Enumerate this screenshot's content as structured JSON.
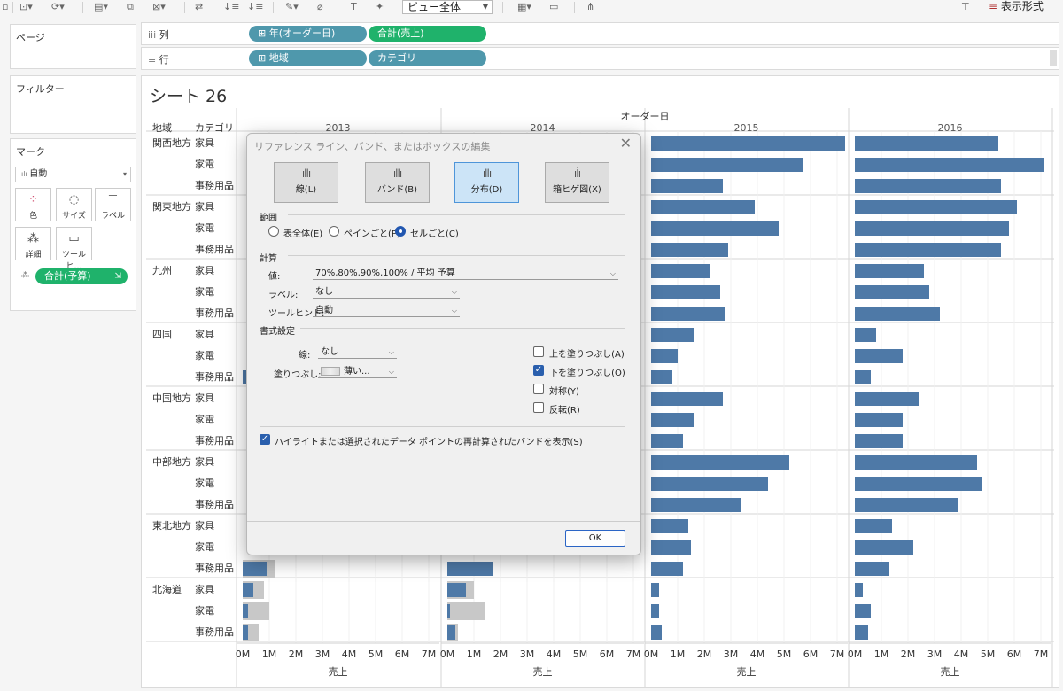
{
  "toolbar": {
    "view_select": "ビュー全体",
    "show_format": "表示形式"
  },
  "cards": {
    "pages": "ページ",
    "filters": "フィルター",
    "marks": "マーク",
    "marks_type": "自動",
    "mark_buttons": [
      {
        "label": "色",
        "icon": "color-icon"
      },
      {
        "label": "サイズ",
        "icon": "size-icon"
      },
      {
        "label": "ラベル",
        "icon": "label-icon"
      },
      {
        "label": "詳細",
        "icon": "detail-icon"
      },
      {
        "label": "ツールヒ…",
        "icon": "tooltip-icon"
      }
    ],
    "marks_pill": "合計(予算)"
  },
  "shelves": {
    "columns_title": "列",
    "rows_title": "行",
    "columns_pills": [
      "年(オーダー日)",
      "合計(売上)"
    ],
    "rows_pills": [
      "地域",
      "カテゴリ"
    ]
  },
  "sheet": {
    "title": "シート 26",
    "header_region": "地域",
    "header_category": "カテゴリ",
    "column_header": "オーダー日",
    "axis_title": "売上"
  },
  "chart_data": {
    "type": "bar",
    "title": "シート 26",
    "column_header": "オーダー日",
    "years": [
      "2013",
      "2014",
      "2015",
      "2016"
    ],
    "regions": [
      "関西地方",
      "関東地方",
      "九州",
      "四国",
      "中国地方",
      "中部地方",
      "東北地方",
      "北海道"
    ],
    "categories": [
      "家具",
      "家電",
      "事務用品"
    ],
    "xlabel": "売上",
    "xlim": [
      0,
      7.5
    ],
    "ticks": [
      "0M",
      "1M",
      "2M",
      "3M",
      "4M",
      "5M",
      "6M",
      "7M"
    ],
    "unit": "M",
    "bar_color": "#4e79a7",
    "band_color": "#c8c8c8",
    "series": [
      {
        "year": "2015",
        "values": [
          [
            7.3,
            5.7,
            2.7
          ],
          [
            3.9,
            4.8,
            2.9
          ],
          [
            2.2,
            2.6,
            2.8
          ],
          [
            1.6,
            1.0,
            0.8
          ],
          [
            2.7,
            1.6,
            1.2
          ],
          [
            5.2,
            4.4,
            3.4
          ],
          [
            1.4,
            1.5,
            1.2
          ],
          [
            0.3,
            0.3,
            0.4
          ]
        ]
      },
      {
        "year": "2016",
        "values": [
          [
            5.4,
            7.1,
            5.5
          ],
          [
            6.1,
            5.8,
            5.5
          ],
          [
            2.6,
            2.8,
            3.2
          ],
          [
            0.8,
            1.8,
            0.6
          ],
          [
            2.4,
            1.8,
            1.8
          ],
          [
            4.6,
            4.8,
            3.9
          ],
          [
            1.4,
            2.2,
            1.3
          ],
          [
            0.3,
            0.6,
            0.5
          ]
        ]
      },
      {
        "year": "2013",
        "values": [
          [
            null,
            null,
            null
          ],
          [
            null,
            null,
            null
          ],
          [
            null,
            null,
            null
          ],
          [
            null,
            null,
            0.2
          ],
          [
            null,
            null,
            null
          ],
          [
            null,
            null,
            null
          ],
          [
            null,
            null,
            0.9
          ],
          [
            0.4,
            0.2,
            0.2
          ]
        ]
      },
      {
        "year": "2014",
        "values": [
          [
            null,
            null,
            null
          ],
          [
            null,
            null,
            null
          ],
          [
            null,
            null,
            null
          ],
          [
            null,
            null,
            null
          ],
          [
            null,
            null,
            null
          ],
          [
            null,
            null,
            null
          ],
          [
            null,
            null,
            1.7
          ],
          [
            0.7,
            0.1,
            0.3
          ]
        ]
      }
    ],
    "bands": {
      "2013": [
        [
          null,
          null,
          null
        ],
        [
          null,
          null,
          null
        ],
        [
          null,
          null,
          null
        ],
        [
          null,
          null,
          null
        ],
        [
          null,
          null,
          null
        ],
        [
          null,
          null,
          null
        ],
        [
          null,
          null,
          1.2
        ],
        [
          0.8,
          1.0,
          0.6
        ]
      ],
      "2014": [
        [
          null,
          null,
          null
        ],
        [
          null,
          null,
          null
        ],
        [
          null,
          null,
          null
        ],
        [
          null,
          null,
          null
        ],
        [
          null,
          null,
          null
        ],
        [
          null,
          null,
          null
        ],
        [
          null,
          null,
          null
        ],
        [
          1.0,
          1.4,
          0.4
        ]
      ]
    },
    "grid": true
  },
  "dialog": {
    "title": "リファレンス ライン、バンド、またはボックスの編集",
    "types": [
      {
        "label": "線(L)",
        "selected": false
      },
      {
        "label": "バンド(B)",
        "selected": false
      },
      {
        "label": "分布(D)",
        "selected": true
      },
      {
        "label": "箱ヒゲ図(X)",
        "selected": false
      }
    ],
    "scope_title": "範囲",
    "scope_options": [
      {
        "label": "表全体(E)",
        "selected": false
      },
      {
        "label": "ペインごと(P)",
        "selected": false
      },
      {
        "label": "セルごと(C)",
        "selected": true
      }
    ],
    "calc_title": "計算",
    "value_label": "値:",
    "value_value": "70%,80%,90%,100% / 平均 予算",
    "label_label": "ラベル:",
    "label_value": "なし",
    "tooltip_label": "ツールヒント:",
    "tooltip_value": "自動",
    "format_title": "書式設定",
    "line_label": "線:",
    "line_value": "なし",
    "fill_label": "塗りつぶし:",
    "fill_value": "薄い...",
    "checks": [
      {
        "label": "上を塗りつぶし(A)",
        "checked": false
      },
      {
        "label": "下を塗りつぶし(O)",
        "checked": true
      },
      {
        "label": "対称(Y)",
        "checked": false
      },
      {
        "label": "反転(R)",
        "checked": false
      }
    ],
    "highlight_check": "ハイライトまたは選択されたデータ ポイントの再計算されたバンドを表示(S)",
    "ok": "OK"
  }
}
